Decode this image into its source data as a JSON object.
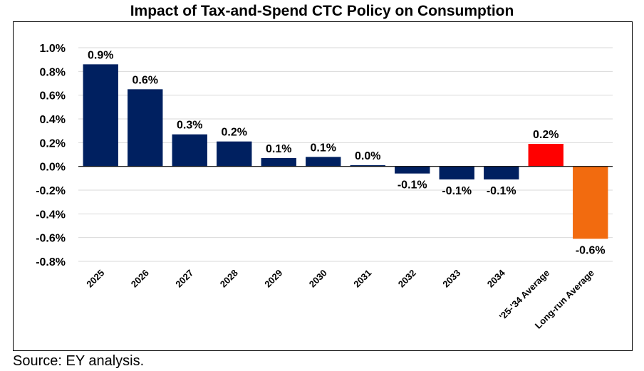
{
  "chart_data": {
    "type": "bar",
    "title": "Impact of Tax-and-Spend CTC Policy on Consumption",
    "categories": [
      "2025",
      "2026",
      "2027",
      "2028",
      "2029",
      "2030",
      "2031",
      "2032",
      "2033",
      "2034",
      "'25-'34 Average",
      "Long-run Average"
    ],
    "values": [
      0.86,
      0.65,
      0.27,
      0.21,
      0.07,
      0.08,
      0.01,
      -0.06,
      -0.11,
      -0.11,
      0.19,
      -0.61
    ],
    "data_labels": [
      "0.9%",
      "0.6%",
      "0.3%",
      "0.2%",
      "0.1%",
      "0.1%",
      "0.0%",
      "-0.1%",
      "-0.1%",
      "-0.1%",
      "0.2%",
      "-0.6%"
    ],
    "bar_colors": [
      "#002060",
      "#002060",
      "#002060",
      "#002060",
      "#002060",
      "#002060",
      "#002060",
      "#002060",
      "#002060",
      "#002060",
      "#FF0000",
      "#F26B0F"
    ],
    "y_ticks": [
      1.0,
      0.8,
      0.6,
      0.4,
      0.2,
      0.0,
      -0.2,
      -0.4,
      -0.6,
      -0.8
    ],
    "y_tick_labels": [
      "1.0%",
      "0.8%",
      "0.6%",
      "0.4%",
      "0.2%",
      "0.0%",
      "-0.2%",
      "-0.4%",
      "-0.6%",
      "-0.8%"
    ],
    "ylim": [
      -0.8,
      1.0
    ],
    "xlabel": "",
    "ylabel": "",
    "grid": true
  },
  "source_note": "Source: EY analysis."
}
